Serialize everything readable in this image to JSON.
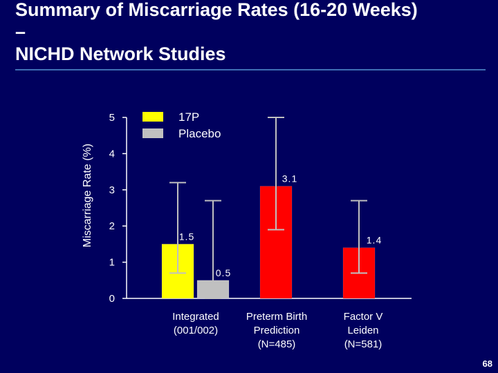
{
  "slide": {
    "title_line1": "Summary of Miscarriage Rates (16-20 Weeks)",
    "title_dash": "–",
    "title_line2": "NICHD Network Studies",
    "page_number": "68"
  },
  "colors": {
    "background": "#00005e",
    "accent_rule": "#3f6fb5",
    "text": "#ffffff",
    "series_17P": "#ffff00",
    "series_placebo": "#c0c0c0",
    "series_17P_other": "#ff0000"
  },
  "chart_data": {
    "type": "bar",
    "title": "",
    "ylabel": "Miscarriage Rate (%)",
    "xlabel": "",
    "ylim": [
      0,
      5
    ],
    "yticks": [
      0,
      1,
      2,
      3,
      4,
      5
    ],
    "grid": false,
    "legend": {
      "placement": "top-left",
      "items": [
        {
          "label": "17P",
          "color": "#ffff00"
        },
        {
          "label": "Placebo",
          "color": "#c0c0c0"
        }
      ]
    },
    "groups": [
      {
        "label_lines": [
          "Integrated",
          "(001/002)"
        ],
        "bars": [
          {
            "series": "17P",
            "value": 1.5,
            "label": "1.5",
            "color": "#ffff00",
            "error_low": 0.7,
            "error_high": 3.2
          },
          {
            "series": "Placebo",
            "value": 0.5,
            "label": "0.5",
            "color": "#c0c0c0",
            "error_low": 0.0,
            "error_high": 2.7
          }
        ]
      },
      {
        "label_lines": [
          "Preterm Birth",
          "Prediction",
          "(N=485)"
        ],
        "bars": [
          {
            "series": "17P",
            "value": 3.1,
            "label": "3.1",
            "color": "#ff0000",
            "error_low": 1.9,
            "error_high": 5.0
          }
        ]
      },
      {
        "label_lines": [
          "Factor V",
          "Leiden",
          "(N=581)"
        ],
        "bars": [
          {
            "series": "17P",
            "value": 1.4,
            "label": "1.4",
            "color": "#ff0000",
            "error_low": 0.7,
            "error_high": 2.7
          }
        ]
      }
    ]
  }
}
